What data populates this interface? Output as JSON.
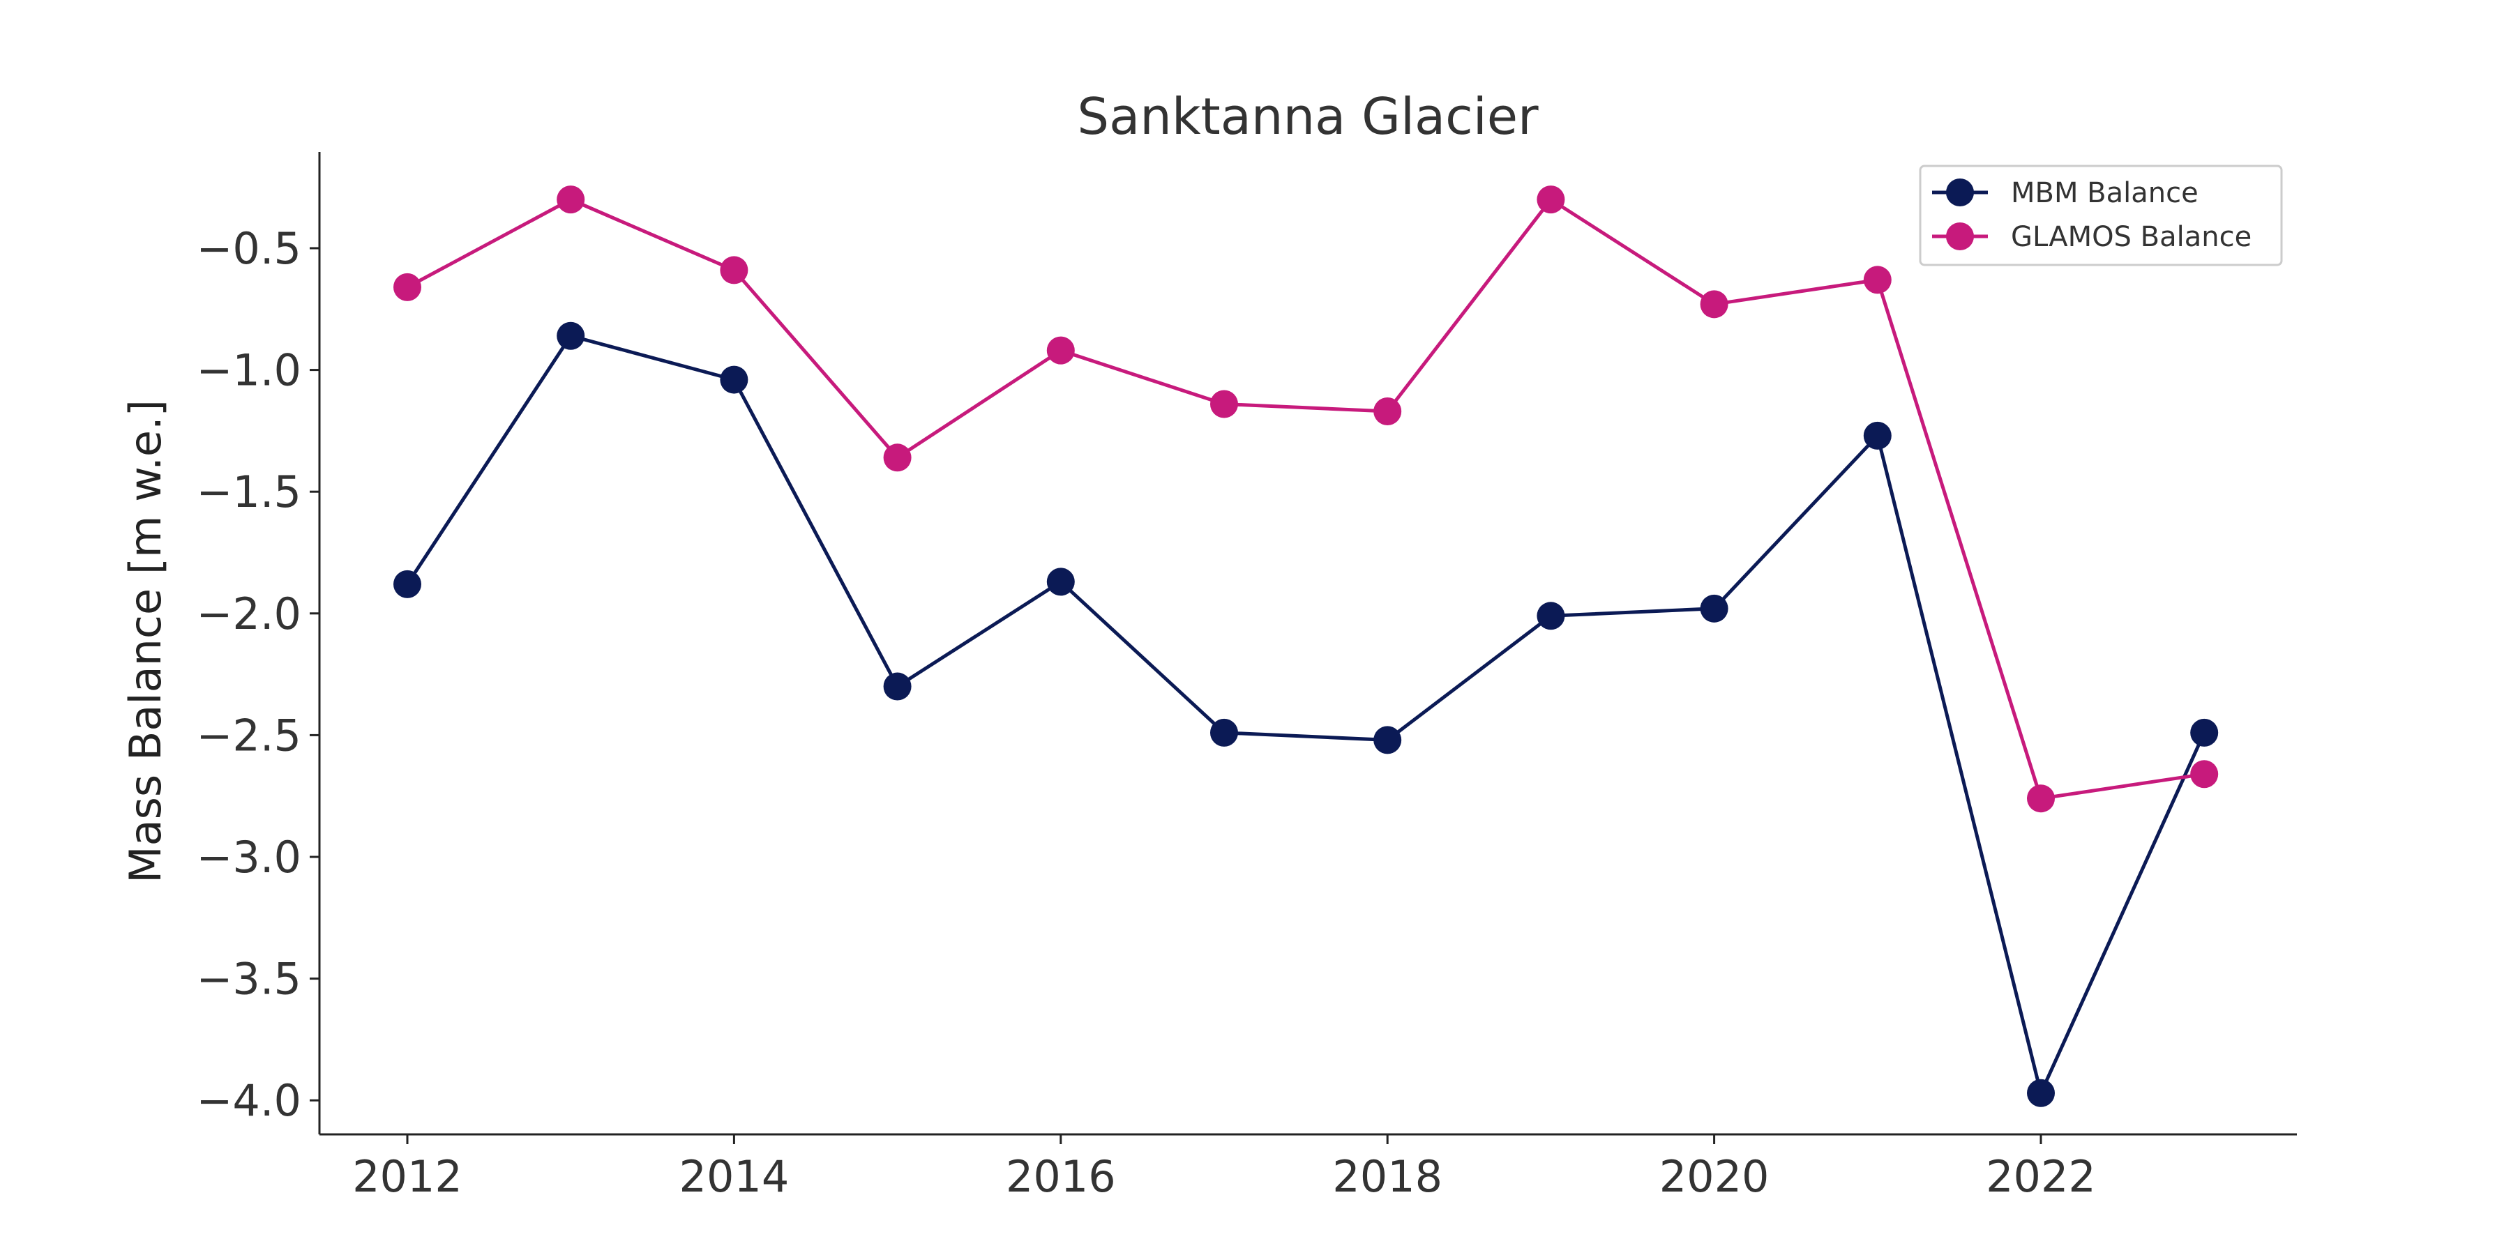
{
  "chart_data": {
    "type": "line",
    "title": "Sanktanna Glacier",
    "xlabel": "",
    "ylabel": "Mass Balance [m w.e.]",
    "x": [
      2012,
      2013,
      2014,
      2015,
      2016,
      2017,
      2018,
      2019,
      2020,
      2021,
      2022,
      2023
    ],
    "xticks": [
      2012,
      2014,
      2016,
      2018,
      2020,
      2022
    ],
    "xtick_labels": [
      "2012",
      "2014",
      "2016",
      "2018",
      "2020",
      "2022"
    ],
    "yticks": [
      -0.5,
      -1.0,
      -1.5,
      -2.0,
      -2.5,
      -3.0,
      -3.5,
      -4.0
    ],
    "ytick_labels": [
      "−0.5",
      "−1.0",
      "−1.5",
      "−2.0",
      "−2.5",
      "−3.0",
      "−3.5",
      "−4.0"
    ],
    "xlim": [
      2011.45,
      2023.55
    ],
    "ylim": [
      -4.15,
      -0.1
    ],
    "grid": false,
    "legend_position": "top-right",
    "series": [
      {
        "name": "MBM Balance",
        "color": "#0b1a55",
        "values": [
          -1.88,
          -0.86,
          -1.04,
          -2.3,
          -1.87,
          -2.49,
          -2.52,
          -2.01,
          -1.98,
          -1.27,
          -3.97,
          -2.49
        ]
      },
      {
        "name": "GLAMOS Balance",
        "color": "#c71a7c",
        "values": [
          -0.66,
          -0.3,
          -0.59,
          -1.36,
          -0.92,
          -1.14,
          -1.17,
          -0.3,
          -0.73,
          -0.63,
          -2.76,
          -2.66
        ]
      }
    ]
  }
}
